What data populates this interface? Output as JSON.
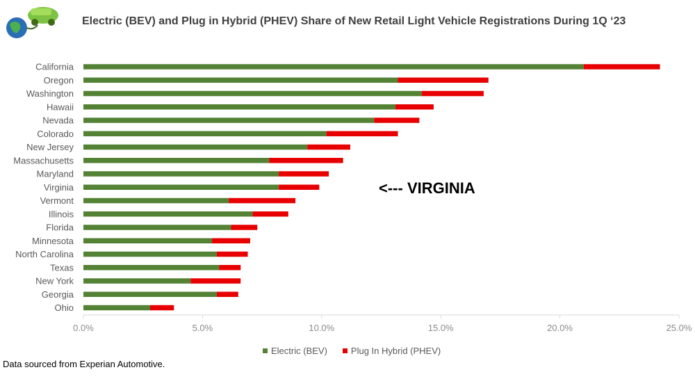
{
  "header": {
    "title": "Electric (BEV) and Plug in Hybrid (PHEV) Share of New Retail Light Vehicle Registrations During 1Q ‘23",
    "logo_icon": "electric-car-globe-icon"
  },
  "annotation": {
    "text": "<--- VIRGINIA"
  },
  "footer": {
    "source": "Data sourced from Experian Automotive."
  },
  "colors": {
    "bev": "#548235",
    "phev": "#e80000",
    "axis": "#d9d9d9"
  },
  "chart_data": {
    "type": "bar",
    "orientation": "horizontal",
    "stacked": true,
    "title": "Electric (BEV) and Plug in Hybrid (PHEV) Share of New Retail Light Vehicle Registrations During 1Q ‘23",
    "xlabel": "",
    "ylabel": "",
    "xlim": [
      0,
      25
    ],
    "x_ticks": [
      "0.0%",
      "5.0%",
      "10.0%",
      "15.0%",
      "20.0%",
      "25.0%"
    ],
    "x_tick_values": [
      0,
      5,
      10,
      15,
      20,
      25
    ],
    "grid": false,
    "legend_position": "bottom",
    "categories": [
      "California",
      "Oregon",
      "Washington",
      "Hawaii",
      "Nevada",
      "Colorado",
      "New Jersey",
      "Massachusetts",
      "Maryland",
      "Virginia",
      "Vermont",
      "Illinois",
      "Florida",
      "Minnesota",
      "North Carolina",
      "Texas",
      "New York",
      "Georgia",
      "Ohio"
    ],
    "series": [
      {
        "name": "Electric (BEV)",
        "values": [
          21.0,
          13.2,
          14.2,
          13.1,
          12.2,
          10.2,
          9.4,
          7.8,
          8.2,
          8.2,
          6.1,
          7.1,
          6.2,
          5.4,
          5.6,
          5.7,
          4.5,
          5.6,
          2.8
        ]
      },
      {
        "name": "Plug In Hybrid (PHEV)",
        "values": [
          3.2,
          3.8,
          2.6,
          1.6,
          1.9,
          3.0,
          1.8,
          3.1,
          2.1,
          1.7,
          2.8,
          1.5,
          1.1,
          1.6,
          1.3,
          0.9,
          2.1,
          0.9,
          1.0
        ]
      }
    ]
  }
}
